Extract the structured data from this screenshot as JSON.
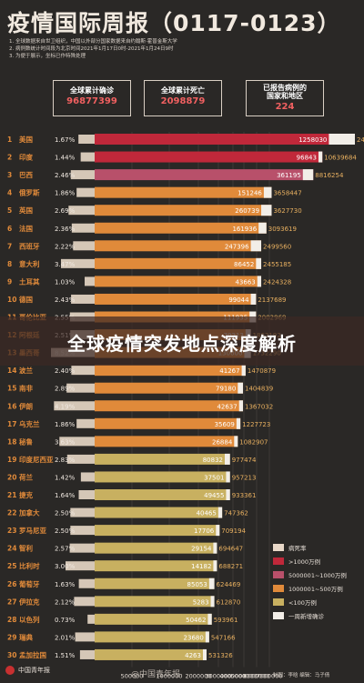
{
  "header": {
    "title": "疫情国际周报（0117-0123）",
    "notes": [
      "1. 全球数据来自世卫组织，中国以外部分国家数据来自约翰斯·霍普金斯大学",
      "2. 病例数统计时间段为北京时间2021年1月17日0时-2021年1月24日9时",
      "3. 为便于展示，坐标已作特殊处理"
    ]
  },
  "summary": {
    "cases_label": "全球累计确诊",
    "cases_value": "96877399",
    "deaths_label": "全球累计死亡",
    "deaths_value": "2098879",
    "countries_label_1": "已报告病例的",
    "countries_label_2": "国家和地区",
    "countries_value": "224"
  },
  "banner": {
    "text": "全球疫情突发地点深度解析"
  },
  "legend": {
    "items": [
      {
        "label": "病死率",
        "color": "#e8d8c8"
      },
      {
        "label": ">1000万例",
        "color": "#c0283a"
      },
      {
        "label": "5000001~1000万例",
        "color": "#b8506a"
      },
      {
        "label": "1000001~500万例",
        "color": "#e08a3a"
      },
      {
        "label": "<100万例",
        "color": "#c8b060"
      },
      {
        "label": "一周新增确诊",
        "color": "#f2eee8"
      }
    ]
  },
  "footer": {
    "logo_text": "中国青年报",
    "watermark": "@中国青年报",
    "credits": "制图：李晗    编辑：马子倩"
  },
  "colors": {
    "background": "#2a2826",
    "accent_red": "#c0283a",
    "value_color": "#e8b060"
  },
  "chart_data": {
    "type": "bar",
    "orientation": "horizontal",
    "axis_ticks": [
      "500000",
      "1000000",
      "2000000",
      "3000000",
      "4000000",
      "5000000",
      "6000000",
      "7000000"
    ],
    "rows": [
      {
        "rank": "1",
        "country": "美国",
        "fatality": "1.67%",
        "weekly_new": "1258030",
        "total": "24982615",
        "tier": "t1",
        "fat": 1.67,
        "bar": 1.0,
        "wk": 0.2
      },
      {
        "rank": "2",
        "country": "印度",
        "fatality": "1.44%",
        "weekly_new": "96843",
        "total": "10639684",
        "tier": "t1",
        "fat": 1.44,
        "bar": 0.875,
        "wk": 0.03
      },
      {
        "rank": "3",
        "country": "巴西",
        "fatality": "2.46%",
        "weekly_new": "361195",
        "total": "8816254",
        "tier": "t2",
        "fat": 2.46,
        "bar": 0.84,
        "wk": 0.08
      },
      {
        "rank": "4",
        "country": "俄罗斯",
        "fatality": "1.86%",
        "weekly_new": "151246",
        "total": "3658447",
        "tier": "t3",
        "fat": 1.86,
        "bar": 0.68,
        "wk": 0.06
      },
      {
        "rank": "5",
        "country": "英国",
        "fatality": "2.69%",
        "weekly_new": "260739",
        "total": "3627730",
        "tier": "t3",
        "fat": 2.69,
        "bar": 0.68,
        "wk": 0.08
      },
      {
        "rank": "6",
        "country": "法国",
        "fatality": "2.36%",
        "weekly_new": "161936",
        "total": "3093619",
        "tier": "t3",
        "fat": 2.36,
        "bar": 0.66,
        "wk": 0.06
      },
      {
        "rank": "7",
        "country": "西班牙",
        "fatality": "2.22%",
        "weekly_new": "247396",
        "total": "2499560",
        "tier": "t3",
        "fat": 2.22,
        "bar": 0.64,
        "wk": 0.08
      },
      {
        "rank": "8",
        "country": "意大利",
        "fatality": "3.47%",
        "weekly_new": "86452",
        "total": "2455185",
        "tier": "t3",
        "fat": 3.47,
        "bar": 0.64,
        "wk": 0.04
      },
      {
        "rank": "9",
        "country": "土耳其",
        "fatality": "1.03%",
        "weekly_new": "43663",
        "total": "2424328",
        "tier": "t3",
        "fat": 1.03,
        "bar": 0.64,
        "wk": 0.03
      },
      {
        "rank": "10",
        "country": "德国",
        "fatality": "2.43%",
        "weekly_new": "99044",
        "total": "2137689",
        "tier": "t3",
        "fat": 2.43,
        "bar": 0.62,
        "wk": 0.04
      },
      {
        "rank": "11",
        "country": "哥伦比亚",
        "fatality": "2.55%",
        "weekly_new": "111935",
        "total": "2002969",
        "tier": "t3",
        "fat": 2.55,
        "bar": 0.62,
        "wk": 0.05
      },
      {
        "rank": "12",
        "country": "阿根廷",
        "fatality": "2.51%",
        "weekly_new": "70213",
        "total": "1862192",
        "tier": "t3",
        "fat": 2.51,
        "bar": 0.6,
        "wk": 0.04
      },
      {
        "rank": "13",
        "country": "墨西哥",
        "fatality": "8.52%",
        "weekly_new": "130000",
        "total": "1732290",
        "tier": "t3",
        "fat": 8.52,
        "bar": 0.6,
        "wk": 0.05
      },
      {
        "rank": "14",
        "country": "波兰",
        "fatality": "2.40%",
        "weekly_new": "41267",
        "total": "1470879",
        "tier": "t3",
        "fat": 2.4,
        "bar": 0.58,
        "wk": 0.03
      },
      {
        "rank": "15",
        "country": "南非",
        "fatality": "2.89%",
        "weekly_new": "79180",
        "total": "1404839",
        "tier": "t3",
        "fat": 2.89,
        "bar": 0.57,
        "wk": 0.04
      },
      {
        "rank": "16",
        "country": "伊朗",
        "fatality": "4.19%",
        "weekly_new": "42637",
        "total": "1367032",
        "tier": "t3",
        "fat": 4.19,
        "bar": 0.57,
        "wk": 0.03
      },
      {
        "rank": "17",
        "country": "乌克兰",
        "fatality": "1.86%",
        "weekly_new": "35609",
        "total": "1227723",
        "tier": "t3",
        "fat": 1.86,
        "bar": 0.56,
        "wk": 0.03
      },
      {
        "rank": "18",
        "country": "秘鲁",
        "fatality": "3.63%",
        "weekly_new": "26884",
        "total": "1082907",
        "tier": "t3",
        "fat": 3.63,
        "bar": 0.55,
        "wk": 0.02
      },
      {
        "rank": "19",
        "country": "印度尼西亚",
        "fatality": "2.83%",
        "weekly_new": "80832",
        "total": "977474",
        "tier": "t4",
        "fat": 2.83,
        "bar": 0.52,
        "wk": 0.04
      },
      {
        "rank": "20",
        "country": "荷兰",
        "fatality": "1.42%",
        "weekly_new": "37501",
        "total": "957213",
        "tier": "t4",
        "fat": 1.42,
        "bar": 0.52,
        "wk": 0.03
      },
      {
        "rank": "21",
        "country": "捷克",
        "fatality": "1.64%",
        "weekly_new": "49455",
        "total": "933361",
        "tier": "t4",
        "fat": 1.64,
        "bar": 0.52,
        "wk": 0.03
      },
      {
        "rank": "22",
        "country": "加拿大",
        "fatality": "2.50%",
        "weekly_new": "40465",
        "total": "747362",
        "tier": "t4",
        "fat": 2.5,
        "bar": 0.49,
        "wk": 0.03
      },
      {
        "rank": "23",
        "country": "罗马尼亚",
        "fatality": "2.50%",
        "weekly_new": "17706",
        "total": "709194",
        "tier": "t4",
        "fat": 2.5,
        "bar": 0.48,
        "wk": 0.02
      },
      {
        "rank": "24",
        "country": "智利",
        "fatality": "2.57%",
        "weekly_new": "29154",
        "total": "694647",
        "tier": "t4",
        "fat": 2.57,
        "bar": 0.47,
        "wk": 0.02
      },
      {
        "rank": "25",
        "country": "比利时",
        "fatality": "3.00%",
        "weekly_new": "14182",
        "total": "688271",
        "tier": "t4",
        "fat": 3.0,
        "bar": 0.47,
        "wk": 0.02
      },
      {
        "rank": "26",
        "country": "葡萄牙",
        "fatality": "1.63%",
        "weekly_new": "85053",
        "total": "624469",
        "tier": "t4",
        "fat": 1.63,
        "bar": 0.46,
        "wk": 0.04
      },
      {
        "rank": "27",
        "country": "伊拉克",
        "fatality": "2.12%",
        "weekly_new": "5283",
        "total": "612870",
        "tier": "t4",
        "fat": 2.12,
        "bar": 0.46,
        "wk": 0.01
      },
      {
        "rank": "28",
        "country": "以色列",
        "fatality": "0.73%",
        "weekly_new": "50462",
        "total": "593961",
        "tier": "t4",
        "fat": 0.73,
        "bar": 0.45,
        "wk": 0.03
      },
      {
        "rank": "29",
        "country": "瑞典",
        "fatality": "2.01%",
        "weekly_new": "23680",
        "total": "547166",
        "tier": "t4",
        "fat": 2.01,
        "bar": 0.44,
        "wk": 0.02
      },
      {
        "rank": "30",
        "country": "孟加拉国",
        "fatality": "1.51%",
        "weekly_new": "4263",
        "total": "531326",
        "tier": "t4",
        "fat": 1.51,
        "bar": 0.43,
        "wk": 0.01
      }
    ]
  }
}
